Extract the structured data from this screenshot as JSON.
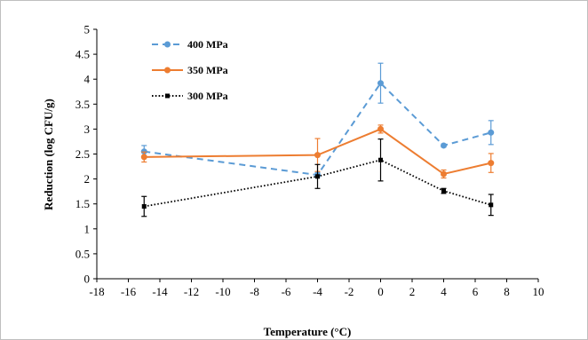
{
  "chart_data": {
    "type": "line",
    "xlabel": "Temperature (°C)",
    "ylabel": "Reduction (log CFU/g)",
    "xlim": [
      -18,
      10
    ],
    "ylim": [
      0,
      5
    ],
    "x_ticks": [
      "-18",
      "-16",
      "-14",
      "-12",
      "-10",
      "-8",
      "-6",
      "-4",
      "-2",
      "0",
      "2",
      "4",
      "6",
      "8",
      "10"
    ],
    "y_ticks": [
      "0",
      "0.5",
      "1",
      "1.5",
      "2",
      "2.5",
      "3",
      "3.5",
      "4",
      "4.5",
      "5"
    ],
    "legend_position": "top-left",
    "grid": false,
    "series": [
      {
        "name": "400 MPa",
        "color": "#5B9BD5",
        "line_style": "dashed",
        "marker": "circle",
        "x": [
          -15,
          -4,
          0,
          4,
          7
        ],
        "y": [
          2.55,
          2.08,
          3.92,
          2.67,
          2.93
        ],
        "error": [
          0.12,
          0.05,
          0.4,
          0.03,
          0.24
        ]
      },
      {
        "name": "350 MPa",
        "color": "#ED7D31",
        "line_style": "solid",
        "marker": "circle",
        "x": [
          -15,
          -4,
          0,
          4,
          7
        ],
        "y": [
          2.44,
          2.48,
          3.0,
          2.1,
          2.32
        ],
        "error": [
          0.1,
          0.33,
          0.08,
          0.08,
          0.19
        ]
      },
      {
        "name": "300 MPa",
        "color": "#000000",
        "line_style": "dotted",
        "marker": "square",
        "x": [
          -15,
          -4,
          0,
          4,
          7
        ],
        "y": [
          1.45,
          2.05,
          2.38,
          1.76,
          1.48
        ],
        "error": [
          0.2,
          0.24,
          0.42,
          0.05,
          0.21
        ]
      }
    ]
  }
}
